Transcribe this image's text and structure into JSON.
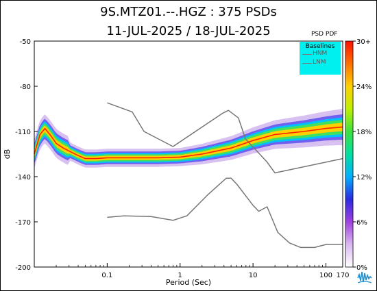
{
  "header": {
    "line1": "9S.MTZ01.--.HGZ : 375 PSDs",
    "line2": "11-JUL-2025 / 18-JUL-2025"
  },
  "colorbar": {
    "title": "PSD PDF",
    "tick_labels": [
      "30+",
      "24%",
      "18%",
      "12%",
      "6%",
      "0%"
    ],
    "colors": [
      "#ffffff",
      "#d9b8f0",
      "#a040e0",
      "#2a2ae0",
      "#00b0ff",
      "#00e0a0",
      "#40e040",
      "#c0f000",
      "#ffd000",
      "#ff7000",
      "#ff1000"
    ]
  },
  "legend": {
    "title": "Baselines",
    "items": [
      {
        "label": "HNM",
        "color": "#777777"
      },
      {
        "label": "LNM",
        "color": "#777777"
      }
    ]
  },
  "chart_data": {
    "type": "line",
    "title": "9S.MTZ01.--.HGZ : 375 PSDs",
    "subtitle": "11-JUL-2025 / 18-JUL-2025",
    "xlabel": "Period (Sec)",
    "ylabel": "dB",
    "x_scale": "log",
    "xlim": [
      0.01,
      170
    ],
    "ylim": [
      -200,
      -50
    ],
    "x_tick_labels": [
      "0.1",
      "1",
      "10",
      "100",
      "170"
    ],
    "x_ticks": [
      0.1,
      1,
      10,
      100,
      170
    ],
    "y_ticks": [
      -50,
      -80,
      -110,
      -140,
      -170,
      -200
    ],
    "grid": false,
    "legend_position": "top-right",
    "series": [
      {
        "name": "HNM",
        "color": "#777777",
        "x": [
          0.1,
          0.22,
          0.32,
          0.8,
          3.8,
          4.6,
          6.3,
          7.9,
          15.4,
          20,
          170
        ],
        "y": [
          -91,
          -97,
          -110,
          -120,
          -98,
          -96,
          -101,
          -115,
          -130,
          -137.5,
          -128
        ]
      },
      {
        "name": "LNM",
        "color": "#777777",
        "x": [
          0.1,
          0.17,
          0.4,
          0.8,
          1.24,
          2.4,
          4.3,
          5,
          6,
          10,
          12,
          15.6,
          21.9,
          31.6,
          45,
          70,
          101,
          154,
          170
        ],
        "y": [
          -167,
          -166,
          -166.5,
          -169,
          -166,
          -152,
          -141,
          -141,
          -145,
          -159,
          -163,
          -160,
          -177,
          -184,
          -187,
          -187,
          -185,
          -185,
          -185
        ]
      },
      {
        "name": "PDF mode",
        "color": "#ff2000",
        "x": [
          0.01,
          0.012,
          0.014,
          0.017,
          0.02,
          0.025,
          0.03,
          0.04,
          0.05,
          0.07,
          0.1,
          0.2,
          0.5,
          1,
          2,
          5,
          10,
          20,
          50,
          100,
          170
        ],
        "y": [
          -125,
          -112,
          -108,
          -113,
          -118,
          -121,
          -123,
          -126,
          -128,
          -128,
          -127.5,
          -127.5,
          -127.5,
          -127,
          -125,
          -121,
          -116,
          -112,
          -110,
          -108,
          -107
        ]
      }
    ]
  }
}
